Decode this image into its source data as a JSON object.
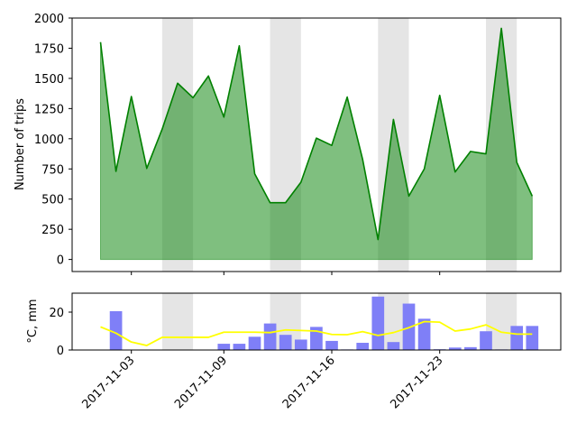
{
  "chart_data": [
    {
      "type": "area",
      "ylabel": "Number of trips",
      "ylim": [
        -100,
        2000
      ],
      "yticks": [
        0,
        250,
        500,
        750,
        1000,
        1250,
        1500,
        1750,
        2000
      ],
      "weekend_day_indices": [
        4,
        5,
        11,
        12,
        18,
        19,
        25,
        26
      ],
      "x": [
        "2017-11-01",
        "2017-11-02",
        "2017-11-03",
        "2017-11-04",
        "2017-11-05",
        "2017-11-06",
        "2017-11-07",
        "2017-11-08",
        "2017-11-09",
        "2017-11-10",
        "2017-11-11",
        "2017-11-12",
        "2017-11-13",
        "2017-11-14",
        "2017-11-15",
        "2017-11-16",
        "2017-11-17",
        "2017-11-18",
        "2017-11-19",
        "2017-11-20",
        "2017-11-21",
        "2017-11-22",
        "2017-11-23",
        "2017-11-24",
        "2017-11-25",
        "2017-11-26",
        "2017-11-27",
        "2017-11-28",
        "2017-11-29"
      ],
      "series": [
        {
          "values": [
            1800,
            730,
            1350,
            755,
            1080,
            1460,
            1340,
            1520,
            1180,
            1770,
            710,
            470,
            470,
            640,
            1005,
            945,
            1345,
            830,
            165,
            1160,
            525,
            750,
            1360,
            725,
            895,
            875,
            1915,
            805,
            525
          ],
          "color": "#008000",
          "fill": "#7fbf7f"
        }
      ],
      "grid": false
    },
    {
      "type": "bar",
      "ylabel": "$^\\circ$C, mm",
      "ylabel_display": "°C, mm",
      "ylim": [
        0,
        30
      ],
      "yticks": [
        0,
        20
      ],
      "xtick_labels": [
        "2017-11-03",
        "2017-11-09",
        "2017-11-16",
        "2017-11-23"
      ],
      "weekend_day_indices": [
        4,
        5,
        11,
        12,
        18,
        19,
        25,
        26
      ],
      "x": [
        "2017-11-01",
        "2017-11-02",
        "2017-11-03",
        "2017-11-04",
        "2017-11-05",
        "2017-11-06",
        "2017-11-07",
        "2017-11-08",
        "2017-11-09",
        "2017-11-10",
        "2017-11-11",
        "2017-11-12",
        "2017-11-13",
        "2017-11-14",
        "2017-11-15",
        "2017-11-16",
        "2017-11-17",
        "2017-11-18",
        "2017-11-19",
        "2017-11-20",
        "2017-11-21",
        "2017-11-22",
        "2017-11-23",
        "2017-11-24",
        "2017-11-25",
        "2017-11-26",
        "2017-11-27",
        "2017-11-28",
        "2017-11-29"
      ],
      "series": [
        {
          "type": "bar",
          "color": "#7f7ff7",
          "values": [
            0,
            20.5,
            0,
            0,
            0,
            0,
            0,
            0,
            3.3,
            3.3,
            7.0,
            14.0,
            8.0,
            5.5,
            12.2,
            4.8,
            0.3,
            3.8,
            28.2,
            4.2,
            24.5,
            16.5,
            0.4,
            1.3,
            1.5,
            9.9,
            0.3,
            12.7,
            12.7
          ]
        },
        {
          "type": "line",
          "color": "#ffff00",
          "values": [
            12.2,
            8.9,
            4.2,
            2.4,
            6.7,
            6.7,
            6.7,
            6.7,
            9.4,
            9.4,
            9.4,
            9.2,
            10.6,
            10.3,
            10.0,
            8.2,
            8.1,
            9.7,
            7.7,
            9.2,
            11.8,
            15.0,
            14.7,
            10.0,
            11.1,
            13.3,
            9.4,
            8.4,
            8.4
          ]
        }
      ],
      "grid": false
    }
  ]
}
